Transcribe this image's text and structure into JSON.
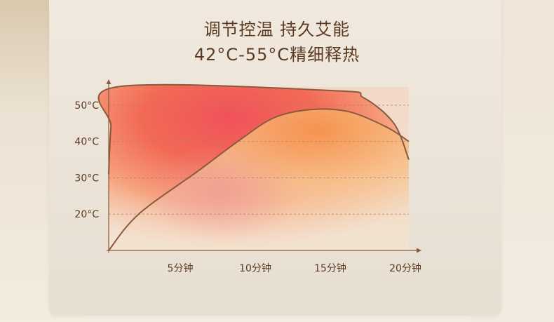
{
  "heading": {
    "line1": "调节控温 持久艾能",
    "line2": "42°C-55°C精细释热"
  },
  "chart_data": {
    "type": "line",
    "categories": [
      "5分钟",
      "10分钟",
      "15分钟",
      "20分钟"
    ],
    "yticks": [
      "20°C",
      "30°C",
      "40°C",
      "50°C"
    ],
    "x": [
      0,
      5,
      10,
      15,
      20
    ],
    "ylim": [
      10,
      55
    ],
    "xlim": [
      0,
      20
    ],
    "grid": "dashed horizontal at 20, 30, 40, 50",
    "series": [
      {
        "key": "upper",
        "color": "#8b5a3c",
        "points": [
          [
            0,
            31
          ],
          [
            0.15,
            44
          ],
          [
            0.5,
            55
          ],
          [
            15,
            54
          ],
          [
            17,
            52
          ],
          [
            19,
            45
          ],
          [
            20,
            35
          ]
        ]
      },
      {
        "key": "lower",
        "color": "#8b5a3c",
        "points": [
          [
            0,
            10
          ],
          [
            2,
            20
          ],
          [
            6,
            32
          ],
          [
            8.6,
            40
          ],
          [
            11,
            46.5
          ],
          [
            13.5,
            48.8
          ],
          [
            16,
            48.2
          ],
          [
            18.5,
            44
          ],
          [
            20,
            40
          ]
        ]
      }
    ]
  }
}
